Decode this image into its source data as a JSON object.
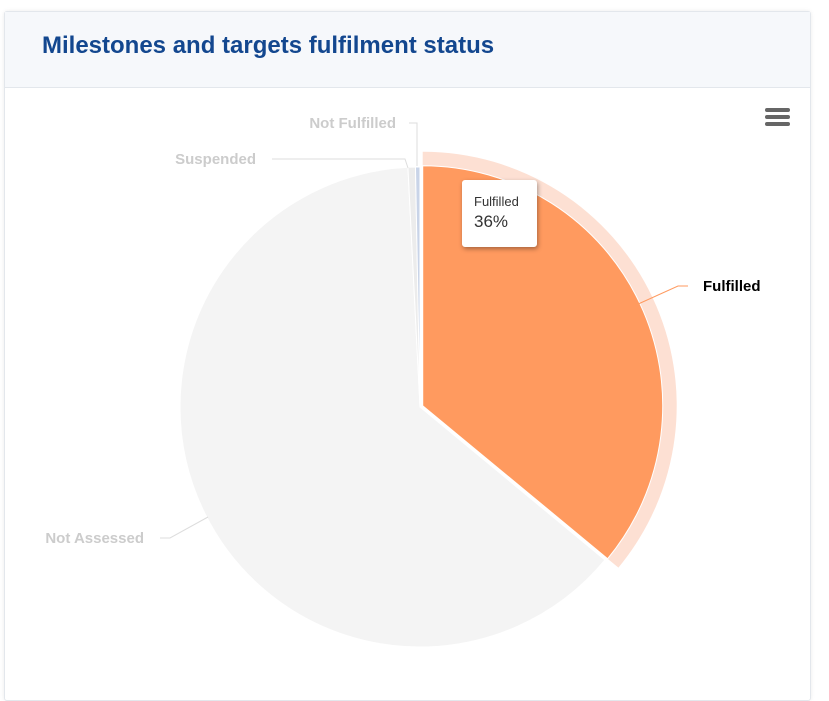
{
  "card": {
    "title": "Milestones and targets fulfilment status"
  },
  "toolbar": {
    "menu_icon": "hamburger-menu-icon"
  },
  "tooltip": {
    "name": "Fulfilled",
    "value": "36%"
  },
  "colors": {
    "fulfilled": "#ff9a5f",
    "fulfilled_halo": "#fde0d3",
    "not_assessed": "#f4f4f4",
    "suspended": "#ececec",
    "not_fulfilled": "#c9d4e8",
    "title": "#13478f",
    "active_label": "#000000",
    "inactive_label": "#cccccc"
  },
  "chart_data": {
    "type": "pie",
    "title": "Milestones and targets fulfilment status",
    "series": [
      {
        "name": "",
        "slices": [
          {
            "name": "Fulfilled",
            "value": 36,
            "color": "#ff9a5f",
            "hovered": true
          },
          {
            "name": "Not Assessed",
            "value": 63.2,
            "color": "#f4f4f4",
            "hovered": false
          },
          {
            "name": "Suspended",
            "value": 0.5,
            "color": "#ececec",
            "hovered": false
          },
          {
            "name": "Not Fulfilled",
            "value": 0.3,
            "color": "#c9d4e8",
            "hovered": false
          }
        ]
      }
    ],
    "data_labels": [
      "Fulfilled",
      "Not Assessed",
      "Suspended",
      "Not Fulfilled"
    ]
  }
}
